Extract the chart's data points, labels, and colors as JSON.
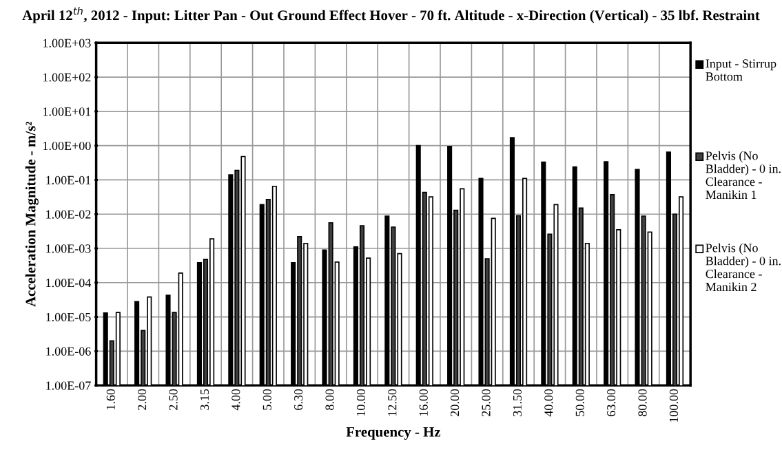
{
  "chart_data": {
    "type": "bar",
    "title": "April 12$^{th}$, 2012 - Input: Litter Pan - Out Ground Effect Hover - 70 ft. Altitude - x-Direction (Vertical) - 35 lbf. Restraint",
    "xlabel": "Frequency - Hz",
    "ylabel": "Acceleration Magnitude - m/s²",
    "categories": [
      "1.60",
      "2.00",
      "2.50",
      "3.15",
      "4.00",
      "5.00",
      "6.30",
      "8.00",
      "10.00",
      "12.50",
      "16.00",
      "20.00",
      "25.00",
      "31.50",
      "40.00",
      "50.00",
      "63.00",
      "80.00",
      "100.00"
    ],
    "series": [
      {
        "name": "Input - Stirrup Bottom",
        "color": "#000000",
        "values": [
          1.3e-05,
          2.8e-05,
          4.3e-05,
          0.00038,
          0.14,
          0.019,
          0.00038,
          0.0009,
          0.0011,
          0.0088,
          1.0,
          0.95,
          0.11,
          1.7,
          0.33,
          0.24,
          0.34,
          0.2,
          0.65
        ]
      },
      {
        "name": "Pelvis (No Bladder) - 0 in. Clearance - Manikin 1",
        "color": "#404040",
        "values": [
          2e-06,
          4e-06,
          1.35e-05,
          0.00048,
          0.19,
          0.027,
          0.0022,
          0.0056,
          0.0046,
          0.0042,
          0.043,
          0.013,
          0.0005,
          0.009,
          0.0026,
          0.015,
          0.037,
          0.0088,
          0.01
        ]
      },
      {
        "name": "Pelvis (No Bladder) - 0 in. Clearance - Manikin 2",
        "color": "#ffffff",
        "values": [
          1.35e-05,
          3.8e-05,
          0.00019,
          0.0019,
          0.48,
          0.065,
          0.0014,
          0.0004,
          0.00052,
          0.0007,
          0.032,
          0.055,
          0.0075,
          0.11,
          0.019,
          0.0014,
          0.0035,
          0.003,
          0.032
        ]
      }
    ],
    "log": "y",
    "ylim": [
      1e-07,
      1000
    ],
    "yticks": [
      {
        "value": 1e-07,
        "label": "1.00E-07"
      },
      {
        "value": 1e-06,
        "label": "1.00E-06"
      },
      {
        "value": 1e-05,
        "label": "1.00E-05"
      },
      {
        "value": 0.0001,
        "label": "1.00E-04"
      },
      {
        "value": 0.001,
        "label": "1.00E-03"
      },
      {
        "value": 0.01,
        "label": "1.00E-02"
      },
      {
        "value": 0.1,
        "label": "1.00E-01"
      },
      {
        "value": 1,
        "label": "1.00E+00"
      },
      {
        "value": 10,
        "label": "1.00E+01"
      },
      {
        "value": 100,
        "label": "1.00E+02"
      },
      {
        "value": 1000,
        "label": "1.00E+03"
      }
    ],
    "grid": true,
    "legend": "right"
  }
}
